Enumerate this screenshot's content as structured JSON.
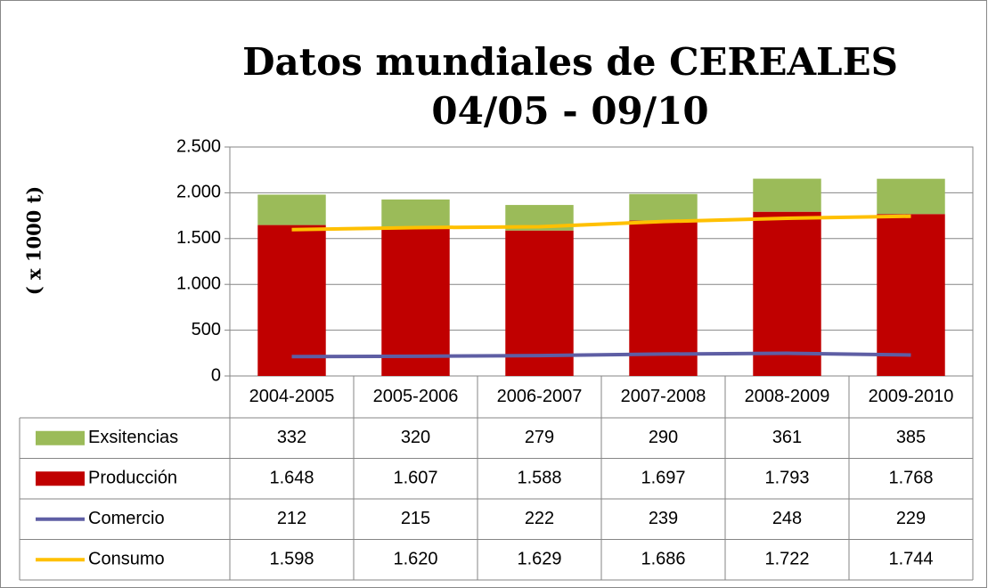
{
  "chart_data": {
    "type": "bar",
    "title": [
      "Datos mundiales de CEREALES",
      "04/05 - 09/10"
    ],
    "y_label": "( x 1000 t)",
    "categories": [
      "2004-2005",
      "2005-2006",
      "2006-2007",
      "2007-2008",
      "2008-2009",
      "2009-2010"
    ],
    "stacked": true,
    "series": [
      {
        "name": "Exsitencias",
        "type": "bar",
        "color": "#9bbb59",
        "values": [
          332,
          320,
          279,
          290,
          361,
          385
        ]
      },
      {
        "name": "Producción",
        "type": "bar",
        "color": "#c00000",
        "values": [
          1648,
          1607,
          1588,
          1697,
          1793,
          1768
        ],
        "value_labels": [
          "1.648",
          "1.607",
          "1.588",
          "1.697",
          "1.793",
          "1.768"
        ]
      },
      {
        "name": "Comercio",
        "type": "line",
        "color": "#5e5ea4",
        "values": [
          212,
          215,
          222,
          239,
          248,
          229
        ]
      },
      {
        "name": "Consumo",
        "type": "line",
        "color": "#ffc000",
        "values": [
          1598,
          1620,
          1629,
          1686,
          1722,
          1744
        ],
        "value_labels": [
          "1.598",
          "1.620",
          "1.629",
          "1.686",
          "1.722",
          "1.744"
        ]
      }
    ],
    "ylim": [
      0,
      2500
    ],
    "yticks": [
      0,
      500,
      {
        "value": 1000,
        "label": "1.000"
      },
      {
        "value": 1500,
        "label": "1.500"
      },
      {
        "value": 2000,
        "label": "2.000"
      },
      {
        "value": 2500,
        "label": "2.500"
      }
    ],
    "grid": true
  }
}
